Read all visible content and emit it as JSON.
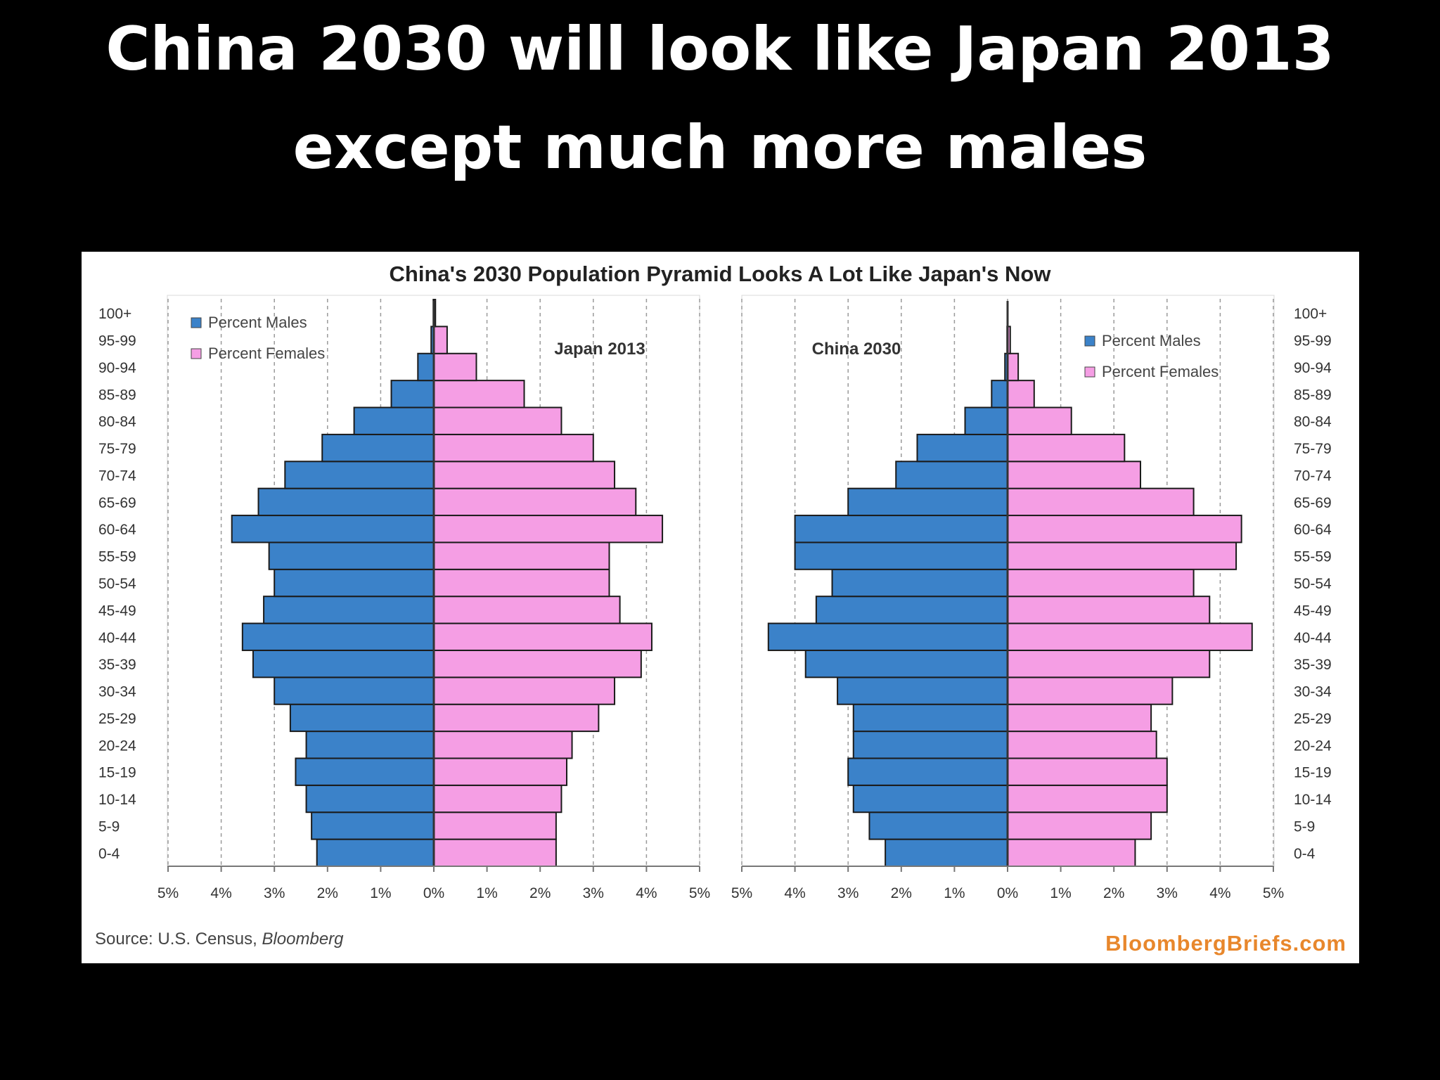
{
  "slide": {
    "title_line1": "China 2030 will look like Japan 2013",
    "title_line2": "except much more males"
  },
  "source": {
    "prefix": "Source: U.S. Census, ",
    "italic": "Bloomberg"
  },
  "brand": "BloombergBriefs.com",
  "colors": {
    "male": "#3b82c9",
    "female": "#f59ee4",
    "outline": "#1b1b1b"
  },
  "chart_data": {
    "title": "China's 2030 Population Pyramid Looks A Lot Like Japan's Now",
    "age_groups": [
      "0-4",
      "5-9",
      "10-14",
      "15-19",
      "20-24",
      "25-29",
      "30-34",
      "35-39",
      "40-44",
      "45-49",
      "50-54",
      "55-59",
      "60-64",
      "65-69",
      "70-74",
      "75-79",
      "80-84",
      "85-89",
      "90-94",
      "95-99",
      "100+"
    ],
    "x_ticks": [
      "5%",
      "4%",
      "3%",
      "2%",
      "1%",
      "0%",
      "1%",
      "2%",
      "3%",
      "4%",
      "5%"
    ],
    "charts": [
      {
        "type": "bar",
        "title": "Japan 2013",
        "legend": [
          "Percent Males",
          "Percent Females"
        ],
        "legend_position": "top-left",
        "ylabel_side": "left",
        "xlim": [
          -5,
          5
        ],
        "series": [
          {
            "name": "Percent Males",
            "values": [
              2.2,
              2.3,
              2.4,
              2.6,
              2.4,
              2.7,
              3.0,
              3.4,
              3.6,
              3.2,
              3.0,
              3.1,
              3.8,
              3.3,
              2.8,
              2.1,
              1.5,
              0.8,
              0.3,
              0.05,
              0.01
            ]
          },
          {
            "name": "Percent Females",
            "values": [
              2.3,
              2.3,
              2.4,
              2.5,
              2.6,
              3.1,
              3.4,
              3.9,
              4.1,
              3.5,
              3.3,
              3.3,
              4.3,
              3.8,
              3.4,
              3.0,
              2.4,
              1.7,
              0.8,
              0.25,
              0.03
            ]
          }
        ]
      },
      {
        "type": "bar",
        "title": "China 2030",
        "legend": [
          "Percent Males",
          "Percent Females"
        ],
        "legend_position": "top-right",
        "ylabel_side": "right",
        "xlim": [
          -5,
          5
        ],
        "series": [
          {
            "name": "Percent Males",
            "values": [
              2.3,
              2.6,
              2.9,
              3.0,
              2.9,
              2.9,
              3.2,
              3.8,
              4.5,
              3.6,
              3.3,
              4.0,
              4.0,
              3.0,
              2.1,
              1.7,
              0.8,
              0.3,
              0.05,
              0.01,
              0.0
            ]
          },
          {
            "name": "Percent Females",
            "values": [
              2.4,
              2.7,
              3.0,
              3.0,
              2.8,
              2.7,
              3.1,
              3.8,
              4.6,
              3.8,
              3.5,
              4.3,
              4.4,
              3.5,
              2.5,
              2.2,
              1.2,
              0.5,
              0.2,
              0.05,
              0.0
            ]
          }
        ]
      }
    ]
  }
}
